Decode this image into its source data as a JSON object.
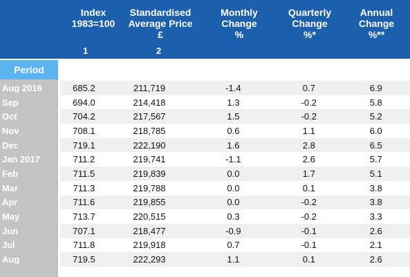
{
  "header": {
    "col1": [
      "Index",
      "1983=100"
    ],
    "col1_num": "1",
    "col2": [
      "Standardised",
      "Average Price",
      "£"
    ],
    "col2_num": "2",
    "col3": [
      "Monthly",
      "Change",
      "%"
    ],
    "col4": [
      "Quarterly",
      "Change",
      "%*"
    ],
    "col5": [
      "Annual",
      "Change",
      "%**"
    ]
  },
  "period_label": "Period",
  "rows": [
    [
      "Aug 2016",
      "685.2",
      "211,719",
      "-1.4",
      "0.7",
      "6.9"
    ],
    [
      "Sep",
      "694.0",
      "214,418",
      "1.3",
      "-0.2",
      "5.8"
    ],
    [
      "Oct",
      "704.2",
      "217,567",
      "1.5",
      "-0.2",
      "5.2"
    ],
    [
      "Nov",
      "708.1",
      "218,785",
      "0.6",
      "1.1",
      "6.0"
    ],
    [
      "Dec",
      "719.1",
      "222,190",
      "1.6",
      "2.8",
      "6.5"
    ],
    [
      "Jan 2017",
      "711.2",
      "219,741",
      "-1.1",
      "2.6",
      "5.7"
    ],
    [
      "Feb",
      "711.5",
      "219,839",
      "0.0",
      "1.7",
      "5.1"
    ],
    [
      "Mar",
      "711.3",
      "219,788",
      "0.0",
      "0.1",
      "3.8"
    ],
    [
      "Apr",
      "711.6",
      "219,855",
      "0.0",
      "-0.2",
      "3.8"
    ],
    [
      "May",
      "713.7",
      "220,515",
      "0.3",
      "-0.2",
      "3.3"
    ],
    [
      "Jun",
      "707.1",
      "218,477",
      "-0.9",
      "-0.1",
      "2.6"
    ],
    [
      "Jul",
      "711.8",
      "219,918",
      "0.7",
      "-0.1",
      "2.1"
    ],
    [
      "Aug",
      "719.5",
      "222,293",
      "1.1",
      "0.1",
      "2.6"
    ]
  ]
}
